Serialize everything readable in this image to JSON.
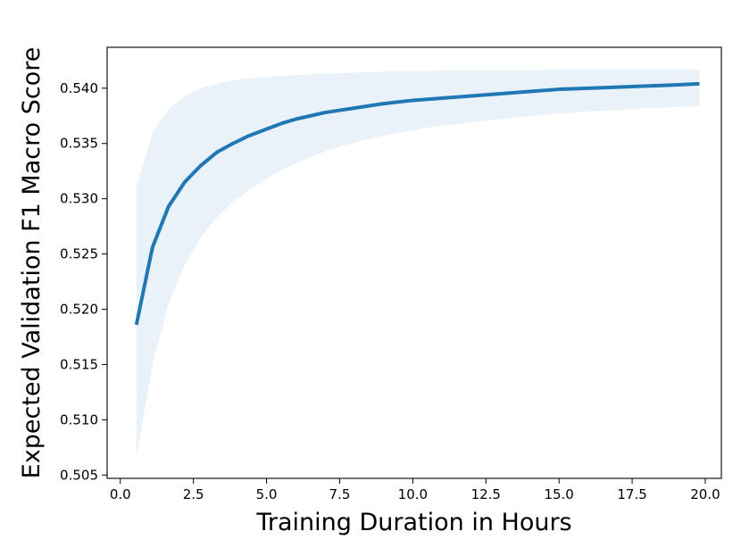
{
  "chart_data": {
    "type": "line",
    "title": "",
    "xlabel": "Training Duration in Hours",
    "ylabel": "Expected Validation F1 Macro Score",
    "xlim": [
      -0.45,
      20.55
    ],
    "ylim": [
      0.5047,
      0.5437
    ],
    "xticks": [
      0.0,
      2.5,
      5.0,
      7.5,
      10.0,
      12.5,
      15.0,
      17.5,
      20.0
    ],
    "xtick_labels": [
      "0.0",
      "2.5",
      "5.0",
      "7.5",
      "10.0",
      "12.5",
      "15.0",
      "17.5",
      "20.0"
    ],
    "yticks": [
      0.505,
      0.51,
      0.515,
      0.52,
      0.525,
      0.53,
      0.535,
      0.54
    ],
    "ytick_labels": [
      "0.505",
      "0.510",
      "0.515",
      "0.520",
      "0.525",
      "0.530",
      "0.535",
      "0.540"
    ],
    "grid": false,
    "series": [
      {
        "color": "#1f77b4",
        "x": [
          0.55,
          1.1,
          1.65,
          2.2,
          2.75,
          3.3,
          3.85,
          4.4,
          5.0,
          5.5,
          6.0,
          7.0,
          8.0,
          9.0,
          10.0,
          11.0,
          12.0,
          13.0,
          14.0,
          15.0,
          16.0,
          17.0,
          18.0,
          19.0,
          19.8
        ],
        "y": [
          0.5186,
          0.5256,
          0.5293,
          0.5315,
          0.533,
          0.5342,
          0.535,
          0.5357,
          0.5363,
          0.5368,
          0.5372,
          0.5378,
          0.5382,
          0.5386,
          0.5389,
          0.5391,
          0.5393,
          0.5395,
          0.5397,
          0.5399,
          0.54,
          0.5401,
          0.5402,
          0.5403,
          0.5404
        ],
        "y_lower": [
          0.5066,
          0.515,
          0.5205,
          0.524,
          0.5265,
          0.5283,
          0.5297,
          0.5308,
          0.5318,
          0.5326,
          0.5332,
          0.5343,
          0.5351,
          0.5357,
          0.5362,
          0.5366,
          0.5369,
          0.5372,
          0.5375,
          0.5377,
          0.5379,
          0.538,
          0.5382,
          0.5383,
          0.5384
        ],
        "y_upper": [
          0.531,
          0.536,
          0.5381,
          0.5393,
          0.54,
          0.5404,
          0.5407,
          0.5409,
          0.541,
          0.5411,
          0.5412,
          0.5413,
          0.5414,
          0.5415,
          0.5415,
          0.5416,
          0.5416,
          0.5416,
          0.5416,
          0.5417,
          0.5417,
          0.5417,
          0.5417,
          0.5417,
          0.5417
        ],
        "band_color": "#e9f1f9"
      }
    ]
  }
}
